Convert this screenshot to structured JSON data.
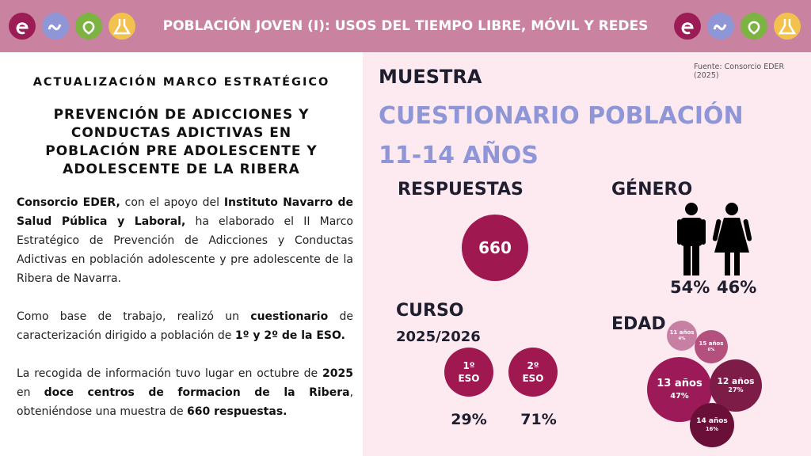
{
  "header": {
    "title": "POBLACIÓN JOVEN (I): USOS DEL TIEMPO LIBRE, MÓVIL Y REDES"
  },
  "left": {
    "heading": "ACTUALIZACIÓN MARCO ESTRATÉGICO",
    "subtitle": "PREVENCIÓN DE ADICCIONES Y CONDUCTAS ADICTIVAS EN POBLACIÓN PRE ADOLESCENTE Y ADOLESCENTE DE LA RIBERA",
    "paragraphs": [
      [
        {
          "text": "Consorcio EDER,",
          "bold": true
        },
        {
          "text": " con el apoyo del ",
          "bold": false
        },
        {
          "text": "Instituto Navarro de Salud Pública y Laboral,",
          "bold": true
        },
        {
          "text": " ha elaborado el II Marco Estratégico de Prevención de Adicciones y Conductas Adictivas en población adolescente y pre adolescente de la Ribera de Navarra.",
          "bold": false
        }
      ],
      [
        {
          "text": "Como base de trabajo, realizó un ",
          "bold": false
        },
        {
          "text": "cuestionario",
          "bold": true
        },
        {
          "text": " de caracterización dirigido a población de ",
          "bold": false
        },
        {
          "text": "1º y 2º de la ESO.",
          "bold": true
        }
      ],
      [
        {
          "text": "La recogida de información  tuvo lugar en octubre de ",
          "bold": false
        },
        {
          "text": "2025",
          "bold": true
        },
        {
          "text": " en ",
          "bold": false
        },
        {
          "text": "doce centros de formacion de la Ribera",
          "bold": true
        },
        {
          "text": ", obteniéndose una muestra de ",
          "bold": false
        },
        {
          "text": "660 respuestas.",
          "bold": true
        }
      ]
    ]
  },
  "right": {
    "source": "Fuente: Consorcio EDER (2025)",
    "section": "MUESTRA",
    "title": "CUESTIONARIO POBLACIÓN 11-14 AÑOS",
    "respuestas": {
      "label": "RESPUESTAS",
      "value": "660"
    },
    "genero": {
      "label": "GÉNERO",
      "values": [
        "54%",
        "46%"
      ]
    },
    "curso": {
      "label": "CURSO",
      "year": "2025/2026",
      "items": [
        {
          "label": "1º ESO",
          "share": "29%"
        },
        {
          "label": "2º ESO",
          "share": "71%"
        }
      ]
    },
    "edad": {
      "label": "EDAD",
      "bubbles": [
        {
          "label": "11 años",
          "value": 4,
          "value_label": "4%",
          "color": "#c77fa3"
        },
        {
          "label": "15 años",
          "value": 6,
          "value_label": "6%",
          "color": "#b4507e"
        },
        {
          "label": "13 años",
          "value": 47,
          "value_label": "47%",
          "color": "#9c1a58"
        },
        {
          "label": "12 años",
          "value": 27,
          "value_label": "27%",
          "color": "#7e1c48"
        },
        {
          "label": "14 años",
          "value": 16,
          "value_label": "16%",
          "color": "#6a0f37"
        }
      ]
    }
  }
}
